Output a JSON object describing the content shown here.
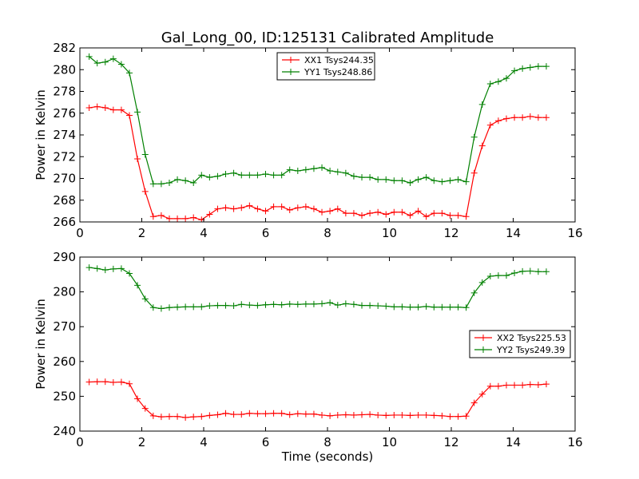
{
  "figure": {
    "title": "Gal_Long_00, ID:125131 Calibrated Amplitude",
    "background": "#ffffff"
  },
  "chart_data": [
    {
      "type": "line",
      "xlabel": "",
      "ylabel": "Power in Kelvin",
      "xlim": [
        0,
        16
      ],
      "ylim": [
        266,
        282
      ],
      "xticks": [
        "0",
        "2",
        "4",
        "6",
        "8",
        "10",
        "12",
        "14",
        "16"
      ],
      "yticks": [
        "266",
        "268",
        "270",
        "272",
        "274",
        "276",
        "278",
        "280",
        "282"
      ],
      "grid": false,
      "legend_position": "top-center",
      "marker": "plus",
      "series": [
        {
          "name": "XX1 Tsys244.35",
          "color": "#ff0000",
          "x": [
            0.3,
            0.56,
            0.82,
            1.08,
            1.34,
            1.6,
            1.86,
            2.11,
            2.37,
            2.63,
            2.89,
            3.15,
            3.41,
            3.67,
            3.93,
            4.19,
            4.45,
            4.71,
            4.97,
            5.22,
            5.48,
            5.74,
            6.0,
            6.26,
            6.52,
            6.78,
            7.04,
            7.3,
            7.56,
            7.82,
            8.08,
            8.33,
            8.59,
            8.85,
            9.11,
            9.37,
            9.63,
            9.89,
            10.15,
            10.41,
            10.67,
            10.93,
            11.19,
            11.44,
            11.7,
            11.96,
            12.22,
            12.48,
            12.74,
            13.0,
            13.26,
            13.52,
            13.78,
            14.04,
            14.3,
            14.55,
            14.81,
            15.07
          ],
          "values": [
            276.5,
            276.6,
            276.5,
            276.3,
            276.3,
            275.8,
            271.8,
            268.8,
            266.5,
            266.6,
            266.3,
            266.3,
            266.3,
            266.4,
            266.2,
            266.7,
            267.2,
            267.3,
            267.2,
            267.3,
            267.5,
            267.2,
            267.0,
            267.4,
            267.4,
            267.1,
            267.3,
            267.4,
            267.2,
            266.9,
            267.0,
            267.2,
            266.8,
            266.8,
            266.6,
            266.8,
            266.9,
            266.7,
            266.9,
            266.9,
            266.6,
            267.0,
            266.5,
            266.8,
            266.8,
            266.6,
            266.6,
            266.5,
            270.5,
            273.0,
            274.9,
            275.3,
            275.5,
            275.6,
            275.6,
            275.7,
            275.6,
            275.6
          ]
        },
        {
          "name": "YY1 Tsys248.86",
          "color": "#008000",
          "x": [
            0.3,
            0.56,
            0.82,
            1.08,
            1.34,
            1.6,
            1.86,
            2.11,
            2.37,
            2.63,
            2.89,
            3.15,
            3.41,
            3.67,
            3.93,
            4.19,
            4.45,
            4.71,
            4.97,
            5.22,
            5.48,
            5.74,
            6.0,
            6.26,
            6.52,
            6.78,
            7.04,
            7.3,
            7.56,
            7.82,
            8.08,
            8.33,
            8.59,
            8.85,
            9.11,
            9.37,
            9.63,
            9.89,
            10.15,
            10.41,
            10.67,
            10.93,
            11.19,
            11.44,
            11.7,
            11.96,
            12.22,
            12.48,
            12.74,
            13.0,
            13.26,
            13.52,
            13.78,
            14.04,
            14.3,
            14.55,
            14.81,
            15.07
          ],
          "values": [
            281.2,
            280.6,
            280.7,
            281.0,
            280.5,
            279.7,
            276.1,
            272.2,
            269.5,
            269.5,
            269.6,
            269.9,
            269.8,
            269.6,
            270.3,
            270.1,
            270.2,
            270.4,
            270.5,
            270.3,
            270.3,
            270.3,
            270.4,
            270.3,
            270.3,
            270.8,
            270.7,
            270.8,
            270.9,
            271.0,
            270.7,
            270.6,
            270.5,
            270.2,
            270.1,
            270.1,
            269.9,
            269.9,
            269.8,
            269.8,
            269.6,
            269.9,
            270.1,
            269.8,
            269.7,
            269.8,
            269.9,
            269.7,
            273.8,
            276.8,
            278.7,
            278.9,
            279.2,
            279.9,
            280.1,
            280.2,
            280.3,
            280.3
          ]
        }
      ]
    },
    {
      "type": "line",
      "xlabel": "Time (seconds)",
      "ylabel": "Power in Kelvin",
      "xlim": [
        0,
        16
      ],
      "ylim": [
        240,
        290
      ],
      "xticks": [
        "0",
        "2",
        "4",
        "6",
        "8",
        "10",
        "12",
        "14",
        "16"
      ],
      "yticks": [
        "240",
        "250",
        "260",
        "270",
        "280",
        "290"
      ],
      "grid": false,
      "legend_position": "right",
      "marker": "plus",
      "series": [
        {
          "name": "XX2 Tsys225.53",
          "color": "#ff0000",
          "x": [
            0.3,
            0.56,
            0.82,
            1.08,
            1.34,
            1.6,
            1.86,
            2.11,
            2.37,
            2.63,
            2.89,
            3.15,
            3.41,
            3.67,
            3.93,
            4.19,
            4.45,
            4.71,
            4.97,
            5.22,
            5.48,
            5.74,
            6.0,
            6.26,
            6.52,
            6.78,
            7.04,
            7.3,
            7.56,
            7.82,
            8.08,
            8.33,
            8.59,
            8.85,
            9.11,
            9.37,
            9.63,
            9.89,
            10.15,
            10.41,
            10.67,
            10.93,
            11.19,
            11.44,
            11.7,
            11.96,
            12.22,
            12.48,
            12.74,
            13.0,
            13.26,
            13.52,
            13.78,
            14.04,
            14.3,
            14.55,
            14.81,
            15.07
          ],
          "values": [
            254.1,
            254.2,
            254.2,
            254.0,
            254.1,
            253.6,
            249.3,
            246.5,
            244.4,
            244.1,
            244.2,
            244.2,
            243.9,
            244.1,
            244.2,
            244.5,
            244.7,
            245.1,
            244.8,
            244.8,
            245.1,
            245.0,
            245.0,
            245.1,
            245.1,
            244.7,
            245.0,
            244.9,
            244.9,
            244.6,
            244.4,
            244.6,
            244.7,
            244.6,
            244.7,
            244.8,
            244.6,
            244.5,
            244.6,
            244.6,
            244.5,
            244.6,
            244.6,
            244.5,
            244.4,
            244.2,
            244.2,
            244.3,
            248.1,
            250.6,
            252.9,
            252.9,
            253.2,
            253.2,
            253.2,
            253.4,
            253.3,
            253.5
          ]
        },
        {
          "name": "YY2 Tsys249.39",
          "color": "#008000",
          "x": [
            0.3,
            0.56,
            0.82,
            1.08,
            1.34,
            1.6,
            1.86,
            2.11,
            2.37,
            2.63,
            2.89,
            3.15,
            3.41,
            3.67,
            3.93,
            4.19,
            4.45,
            4.71,
            4.97,
            5.22,
            5.48,
            5.74,
            6.0,
            6.26,
            6.52,
            6.78,
            7.04,
            7.3,
            7.56,
            7.82,
            8.08,
            8.33,
            8.59,
            8.85,
            9.11,
            9.37,
            9.63,
            9.89,
            10.15,
            10.41,
            10.67,
            10.93,
            11.19,
            11.44,
            11.7,
            11.96,
            12.22,
            12.48,
            12.74,
            13.0,
            13.26,
            13.52,
            13.78,
            14.04,
            14.3,
            14.55,
            14.81,
            15.07
          ],
          "values": [
            287.0,
            286.7,
            286.3,
            286.6,
            286.7,
            285.3,
            281.9,
            278.0,
            275.5,
            275.2,
            275.5,
            275.6,
            275.7,
            275.7,
            275.7,
            276.0,
            276.1,
            276.1,
            276.0,
            276.4,
            276.2,
            276.1,
            276.3,
            276.4,
            276.3,
            276.5,
            276.4,
            276.5,
            276.5,
            276.6,
            276.9,
            276.2,
            276.6,
            276.4,
            276.1,
            276.1,
            276.0,
            275.9,
            275.7,
            275.7,
            275.6,
            275.6,
            275.8,
            275.6,
            275.6,
            275.6,
            275.6,
            275.5,
            279.7,
            282.7,
            284.5,
            284.7,
            284.7,
            285.4,
            285.9,
            286.0,
            285.8,
            285.8
          ]
        }
      ]
    }
  ]
}
